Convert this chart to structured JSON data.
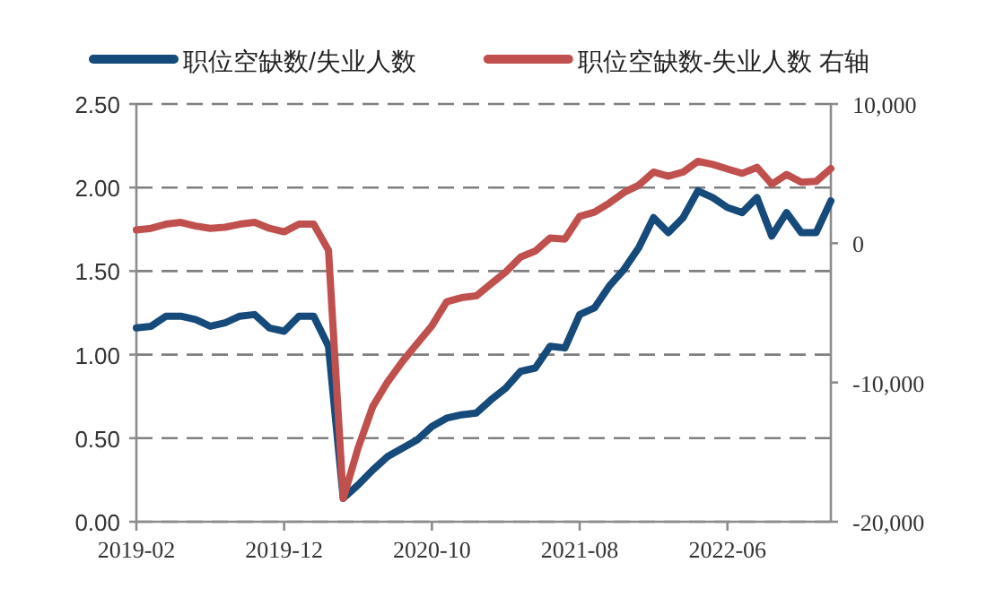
{
  "chart_data": {
    "type": "line",
    "x": [
      "2019-02",
      "2019-03",
      "2019-04",
      "2019-05",
      "2019-06",
      "2019-07",
      "2019-08",
      "2019-09",
      "2019-10",
      "2019-11",
      "2019-12",
      "2020-01",
      "2020-02",
      "2020-03",
      "2020-04",
      "2020-05",
      "2020-06",
      "2020-07",
      "2020-08",
      "2020-09",
      "2020-10",
      "2020-11",
      "2020-12",
      "2021-01",
      "2021-02",
      "2021-03",
      "2021-04",
      "2021-05",
      "2021-06",
      "2021-07",
      "2021-08",
      "2021-09",
      "2021-10",
      "2021-11",
      "2021-12",
      "2022-01",
      "2022-02",
      "2022-03",
      "2022-04",
      "2022-05",
      "2022-06",
      "2022-07",
      "2022-08",
      "2022-09",
      "2022-10",
      "2022-11",
      "2022-12",
      "2023-01"
    ],
    "series": [
      {
        "name": "职位空缺数/失业人数",
        "color": "#154a7a",
        "values": [
          1.16,
          1.17,
          1.23,
          1.23,
          1.21,
          1.17,
          1.19,
          1.23,
          1.24,
          1.16,
          1.14,
          1.23,
          1.23,
          1.05,
          0.14,
          0.22,
          0.31,
          0.39,
          0.44,
          0.49,
          0.57,
          0.62,
          0.64,
          0.65,
          0.73,
          0.8,
          0.9,
          0.92,
          1.05,
          1.04,
          1.24,
          1.28,
          1.41,
          1.51,
          1.64,
          1.82,
          1.73,
          1.82,
          1.98,
          1.94,
          1.88,
          1.85,
          1.94,
          1.71,
          1.85,
          1.73,
          1.73,
          1.92
        ]
      },
      {
        "name": "职位空缺数-失业人数 右轴",
        "color": "#c0504d",
        "axis": "y2",
        "values": [
          950,
          1070,
          1370,
          1500,
          1240,
          1070,
          1150,
          1370,
          1500,
          1070,
          820,
          1370,
          1370,
          -500,
          -18330,
          -14720,
          -11720,
          -9960,
          -8500,
          -7210,
          -5930,
          -4200,
          -3910,
          -3780,
          -2920,
          -2060,
          -990,
          -560,
          380,
          300,
          1930,
          2230,
          2880,
          3650,
          4170,
          5110,
          4810,
          5110,
          5880,
          5660,
          5330,
          5020,
          5450,
          4240,
          4940,
          4380,
          4440,
          5360
        ]
      }
    ],
    "xlim": [
      "2019-02",
      "2023-01"
    ],
    "xticks": [
      {
        "value": "2019-02",
        "label": "2019-02"
      },
      {
        "value": "2019-12",
        "label": "2019-12"
      },
      {
        "value": "2020-10",
        "label": "2020-10"
      },
      {
        "value": "2021-08",
        "label": "2021-08"
      },
      {
        "value": "2022-06",
        "label": "2022-06"
      }
    ],
    "ylim": [
      0,
      2.5
    ],
    "yticks": [
      {
        "value": 0,
        "label": "0.00"
      },
      {
        "value": 0.5,
        "label": "0.50"
      },
      {
        "value": 1,
        "label": "1.00"
      },
      {
        "value": 1.5,
        "label": "1.50"
      },
      {
        "value": 2,
        "label": "2.00"
      },
      {
        "value": 2.5,
        "label": "2.50"
      }
    ],
    "y2lim": [
      -20000,
      10000
    ],
    "y2ticks": [
      {
        "value": -20000,
        "label": "-20,000"
      },
      {
        "value": -10000,
        "label": "-10,000"
      },
      0,
      {
        "value": 10000,
        "label": "10,000"
      }
    ],
    "grid": "y",
    "legend": "top",
    "line_style": "solid"
  }
}
